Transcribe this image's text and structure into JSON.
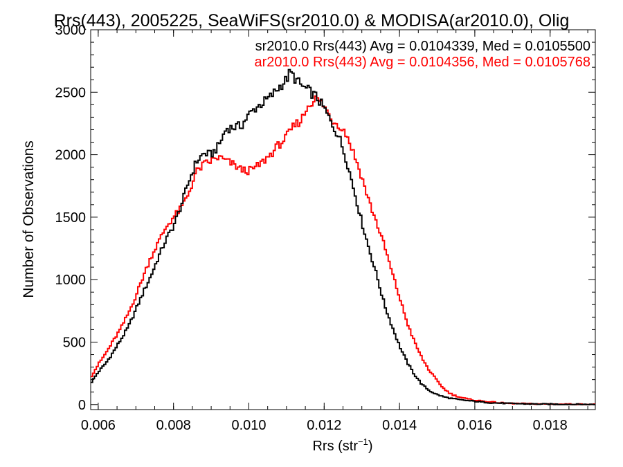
{
  "chart_data": {
    "type": "line",
    "title": "Rrs(443), 2005225, SeaWiFS(sr2010.0) & MODISA(ar2010.0), Olig",
    "xlabel": "Rrs (str",
    "xlabel_sup": "−1",
    "xlabel_end": ")",
    "ylabel": "Number of Observations",
    "xlim": [
      0.0058,
      0.0192
    ],
    "ylim": [
      -40,
      3000
    ],
    "xticks": [
      0.006,
      0.008,
      0.01,
      0.012,
      0.014,
      0.016,
      0.018
    ],
    "xtick_labels": [
      "0.006",
      "0.008",
      "0.010",
      "0.012",
      "0.014",
      "0.016",
      "0.018"
    ],
    "yticks": [
      0,
      500,
      1000,
      1500,
      2000,
      2500,
      3000
    ],
    "ytick_labels": [
      "0",
      "500",
      "1000",
      "1500",
      "2000",
      "2500",
      "3000"
    ],
    "legend_position": "top-right",
    "series": [
      {
        "name": "sr2010.0 Rrs(443) Avg = 0.0104339, Med = 0.0105500",
        "color": "#000000",
        "x": [
          0.0058,
          0.006,
          0.0062,
          0.0064,
          0.0066,
          0.0068,
          0.007,
          0.0072,
          0.0074,
          0.0076,
          0.0078,
          0.008,
          0.0082,
          0.0084,
          0.0086,
          0.0088,
          0.009,
          0.0092,
          0.0094,
          0.0096,
          0.0098,
          0.01,
          0.0102,
          0.0104,
          0.0106,
          0.0108,
          0.011,
          0.0111,
          0.0112,
          0.0114,
          0.0116,
          0.0118,
          0.012,
          0.0122,
          0.0124,
          0.0126,
          0.0128,
          0.013,
          0.0132,
          0.0134,
          0.0136,
          0.0138,
          0.014,
          0.0142,
          0.0144,
          0.0146,
          0.0148,
          0.015,
          0.0152,
          0.0154,
          0.0156,
          0.0158,
          0.016,
          0.0162,
          0.0164,
          0.0166,
          0.0168,
          0.017,
          0.0175,
          0.018,
          0.0185,
          0.019,
          0.0192
        ],
        "y": [
          170,
          260,
          330,
          420,
          520,
          620,
          760,
          900,
          1030,
          1180,
          1320,
          1430,
          1590,
          1780,
          1940,
          2010,
          2000,
          2070,
          2210,
          2220,
          2230,
          2320,
          2380,
          2420,
          2470,
          2540,
          2600,
          2660,
          2620,
          2550,
          2510,
          2460,
          2370,
          2250,
          2140,
          1950,
          1710,
          1460,
          1240,
          1030,
          800,
          630,
          470,
          340,
          240,
          160,
          110,
          80,
          60,
          48,
          38,
          32,
          26,
          20,
          15,
          12,
          10,
          8,
          5,
          3,
          2,
          1,
          1
        ]
      },
      {
        "name": "ar2010.0 Rrs(443) Avg = 0.0104356, Med = 0.0105768",
        "color": "#ff0000",
        "x": [
          0.0058,
          0.006,
          0.0062,
          0.0064,
          0.0066,
          0.0068,
          0.007,
          0.0072,
          0.0074,
          0.0076,
          0.0078,
          0.008,
          0.0082,
          0.0084,
          0.0086,
          0.0088,
          0.009,
          0.0092,
          0.0094,
          0.0096,
          0.0098,
          0.01,
          0.0102,
          0.0104,
          0.0106,
          0.0108,
          0.011,
          0.0112,
          0.0114,
          0.0116,
          0.0118,
          0.012,
          0.0122,
          0.0124,
          0.0126,
          0.0128,
          0.013,
          0.0132,
          0.0134,
          0.0136,
          0.0138,
          0.014,
          0.0142,
          0.0144,
          0.0146,
          0.0148,
          0.015,
          0.0152,
          0.0154,
          0.0156,
          0.0158,
          0.016,
          0.0162,
          0.0164,
          0.0166,
          0.0168,
          0.017,
          0.0175,
          0.018,
          0.0185,
          0.019,
          0.0192
        ],
        "y": [
          220,
          320,
          410,
          510,
          610,
          730,
          870,
          1030,
          1180,
          1300,
          1420,
          1500,
          1570,
          1690,
          1860,
          1920,
          1950,
          1980,
          1950,
          1920,
          1880,
          1870,
          1900,
          1950,
          2010,
          2080,
          2140,
          2230,
          2280,
          2410,
          2450,
          2390,
          2280,
          2240,
          2160,
          2000,
          1820,
          1620,
          1450,
          1270,
          1060,
          860,
          660,
          500,
          370,
          270,
          190,
          120,
          80,
          60,
          45,
          35,
          28,
          22,
          16,
          12,
          9,
          6,
          4,
          3,
          2,
          1
        ]
      }
    ]
  }
}
